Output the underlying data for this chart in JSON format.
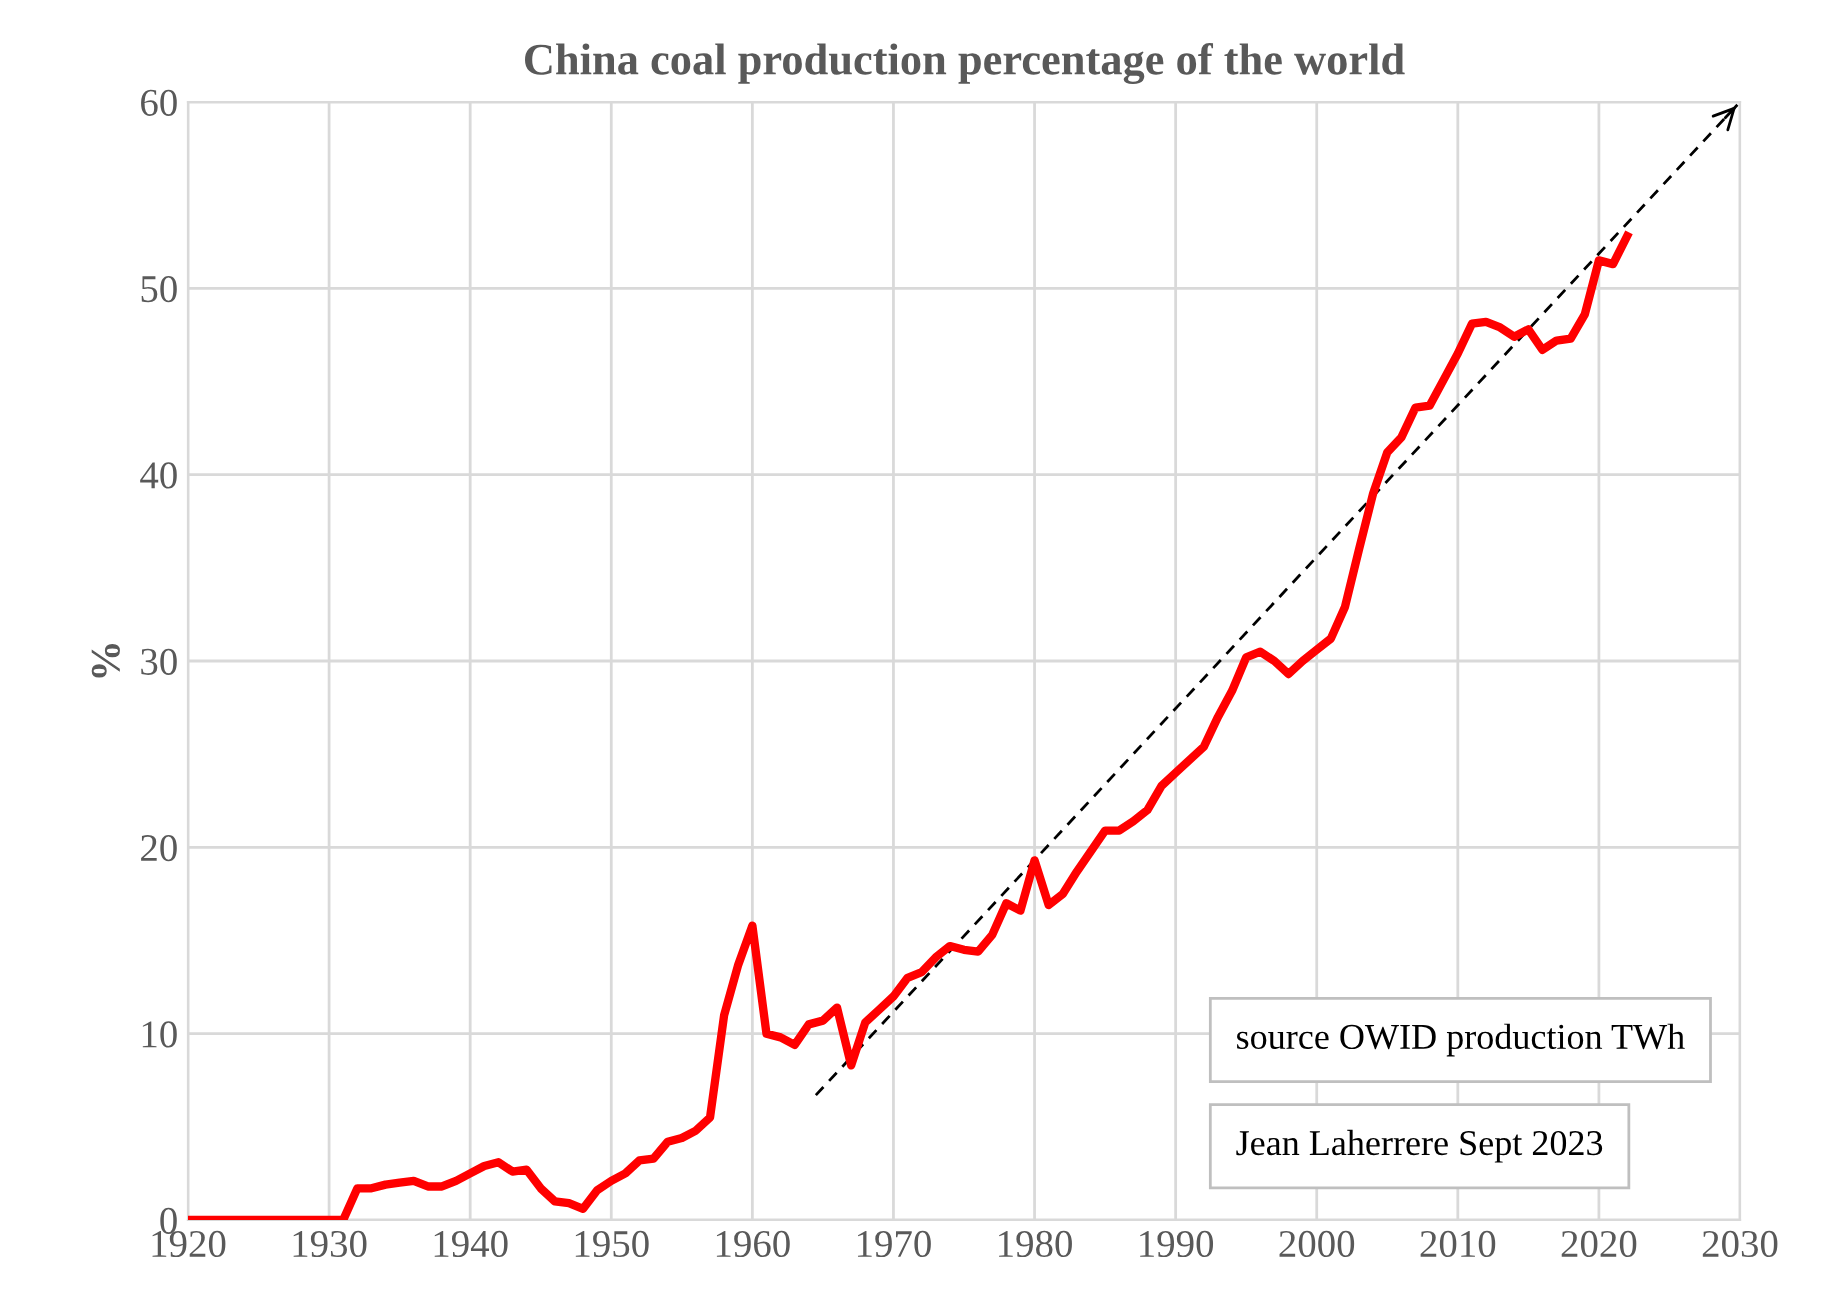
{
  "chart_data": {
    "type": "line",
    "title": "China coal production percentage of the world",
    "ylabel": "%",
    "xlim": [
      1920,
      2030
    ],
    "xticks": [
      1920,
      1930,
      1940,
      1950,
      1960,
      1970,
      1980,
      1990,
      2000,
      2010,
      2020,
      2030
    ],
    "ylim": [
      0,
      60
    ],
    "yticks": [
      0,
      10,
      20,
      30,
      40,
      50,
      60
    ],
    "grid": true,
    "legend": false,
    "marker": "none",
    "series": [
      {
        "color": "#ff0000",
        "line_style": "solid",
        "x": [
          1920,
          1921,
          1922,
          1923,
          1924,
          1925,
          1926,
          1927,
          1928,
          1929,
          1930,
          1931,
          1932,
          1933,
          1934,
          1935,
          1936,
          1937,
          1938,
          1939,
          1940,
          1941,
          1942,
          1943,
          1944,
          1945,
          1946,
          1947,
          1948,
          1949,
          1950,
          1951,
          1952,
          1953,
          1954,
          1955,
          1956,
          1957,
          1958,
          1959,
          1960,
          1961,
          1962,
          1963,
          1964,
          1965,
          1966,
          1967,
          1968,
          1969,
          1970,
          1971,
          1972,
          1973,
          1974,
          1975,
          1976,
          1977,
          1978,
          1979,
          1980,
          1981,
          1982,
          1983,
          1984,
          1985,
          1986,
          1987,
          1988,
          1989,
          1990,
          1991,
          1992,
          1993,
          1994,
          1995,
          1996,
          1997,
          1998,
          1999,
          2000,
          2001,
          2002,
          2003,
          2004,
          2005,
          2006,
          2007,
          2008,
          2009,
          2010,
          2011,
          2012,
          2013,
          2014,
          2015,
          2016,
          2017,
          2018,
          2019,
          2020,
          2021,
          2022
        ],
        "values": [
          0,
          0,
          0,
          0,
          0,
          0,
          0,
          0,
          0,
          0,
          0,
          0,
          1.7,
          1.7,
          1.9,
          2.0,
          2.1,
          1.8,
          1.8,
          2.1,
          2.5,
          2.9,
          3.1,
          2.6,
          2.7,
          1.7,
          1.0,
          0.9,
          0.6,
          1.6,
          2.1,
          2.5,
          3.2,
          3.3,
          4.2,
          4.4,
          4.8,
          5.5,
          11.0,
          13.7,
          15.8,
          10.0,
          9.8,
          9.4,
          10.5,
          10.7,
          11.4,
          8.3,
          10.6,
          11.3,
          12.0,
          13.0,
          13.3,
          14.1,
          14.7,
          14.5,
          14.4,
          15.3,
          17.0,
          16.6,
          19.3,
          16.9,
          17.5,
          18.7,
          19.8,
          20.9,
          20.9,
          21.4,
          22.0,
          23.3,
          24.0,
          24.7,
          25.4,
          27.0,
          28.4,
          30.2,
          30.5,
          30.0,
          29.3,
          30.0,
          30.6,
          31.2,
          32.9,
          36.0,
          39.0,
          41.2,
          42.0,
          43.6,
          43.7,
          45.1,
          46.5,
          48.1,
          48.2,
          47.9,
          47.4,
          47.8,
          46.7,
          47.2,
          47.3,
          48.6,
          51.5,
          51.3,
          52.8
        ]
      },
      {
        "color": "#000000",
        "line_style": "dashed",
        "x": [
          1964.5,
          2030
        ],
        "values": [
          6.7,
          60
        ]
      }
    ],
    "annotations": [
      "source OWID production TWh",
      "Jean Laherrere Sept 2023"
    ]
  }
}
